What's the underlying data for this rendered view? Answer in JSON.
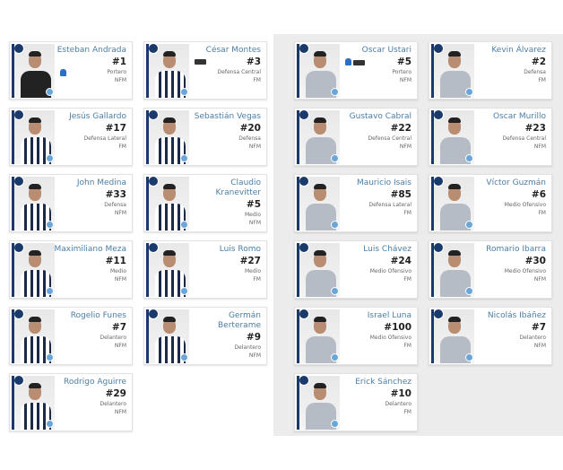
{
  "squads": [
    {
      "players": [
        {
          "name": "Esteban Andrada",
          "number": "#1",
          "position": "Portero",
          "status": "NFM",
          "kit": "gk",
          "badges": [
            "glove-icon"
          ]
        },
        {
          "name": "César Montes",
          "number": "#3",
          "position": "Defensa Central",
          "status": "FM",
          "kit": "home",
          "badges": [
            "captain-band-icon"
          ]
        },
        {
          "name": "Jesús Gallardo",
          "number": "#17",
          "position": "Defensa Lateral",
          "status": "FM",
          "kit": "home",
          "badges": []
        },
        {
          "name": "Sebastián Vegas",
          "number": "#20",
          "position": "Defensa",
          "status": "NFM",
          "kit": "home",
          "badges": []
        },
        {
          "name": "John Medina",
          "number": "#33",
          "position": "Defensa",
          "status": "NFM",
          "kit": "home",
          "badges": []
        },
        {
          "name": "Claudio Kranevitter",
          "number": "#5",
          "position": "Medio",
          "status": "NFM",
          "kit": "home",
          "badges": []
        },
        {
          "name": "Maximiliano Meza",
          "number": "#11",
          "position": "Medio",
          "status": "NFM",
          "kit": "home",
          "badges": []
        },
        {
          "name": "Luis Romo",
          "number": "#27",
          "position": "Medio",
          "status": "FM",
          "kit": "home",
          "badges": []
        },
        {
          "name": "Rogelio Funes",
          "number": "#7",
          "position": "Delantero",
          "status": "NFM",
          "kit": "home",
          "badges": []
        },
        {
          "name": "Germán Berterame",
          "number": "#9",
          "position": "Delantero",
          "status": "NFM",
          "kit": "home",
          "badges": []
        },
        {
          "name": "Rodrigo Aguirre",
          "number": "#29",
          "position": "Delantero",
          "status": "NFM",
          "kit": "home",
          "badges": []
        }
      ]
    },
    {
      "players": [
        {
          "name": "Oscar Ustari",
          "number": "#5",
          "position": "Portero",
          "status": "NFM",
          "kit": "away",
          "badges": [
            "glove-icon",
            "captain-band-icon"
          ]
        },
        {
          "name": "Kevin Álvarez",
          "number": "#2",
          "position": "Defensa",
          "status": "FM",
          "kit": "away",
          "badges": []
        },
        {
          "name": "Gustavo Cabral",
          "number": "#22",
          "position": "Defensa Central",
          "status": "NFM",
          "kit": "away",
          "badges": []
        },
        {
          "name": "Oscar Murillo",
          "number": "#23",
          "position": "Defensa Central",
          "status": "NFM",
          "kit": "away",
          "badges": []
        },
        {
          "name": "Mauricio Isais",
          "number": "#85",
          "position": "Defensa Lateral",
          "status": "FM",
          "kit": "away",
          "badges": []
        },
        {
          "name": "Víctor Guzmán",
          "number": "#6",
          "position": "Medio Ofensivo",
          "status": "FM",
          "kit": "away",
          "badges": []
        },
        {
          "name": "Luis Chávez",
          "number": "#24",
          "position": "Medio Ofensivo",
          "status": "FM",
          "kit": "away",
          "badges": []
        },
        {
          "name": "Romario Ibarra",
          "number": "#30",
          "position": "Medio Ofensivo",
          "status": "NFM",
          "kit": "away",
          "badges": []
        },
        {
          "name": "Israel Luna",
          "number": "#100",
          "position": "Medio Ofensivo",
          "status": "FM",
          "kit": "away",
          "badges": []
        },
        {
          "name": "Nicolás Ibáñez",
          "number": "#7",
          "position": "Delantero",
          "status": "NFM",
          "kit": "away",
          "badges": []
        },
        {
          "name": "Erick Sánchez",
          "number": "#10",
          "position": "Delantero",
          "status": "FM",
          "kit": "away",
          "badges": []
        }
      ]
    }
  ]
}
